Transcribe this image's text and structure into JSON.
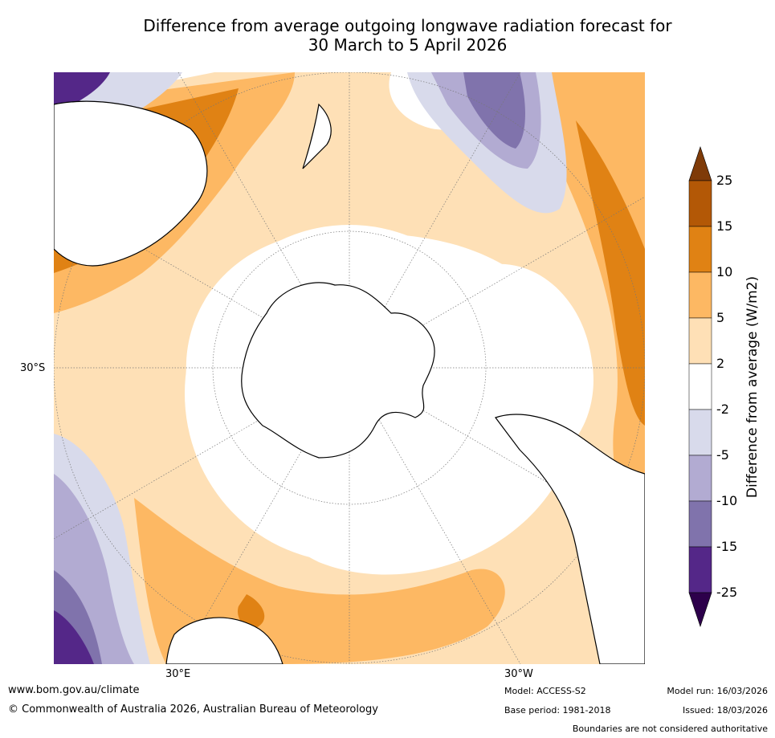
{
  "title": {
    "line1": "Difference from average outgoing longwave radiation forecast for",
    "line2": "30 March to 5 April 2026"
  },
  "axis_labels": {
    "lat_30s": "30°S",
    "lon_30e": "30°E",
    "lon_30w": "30°W"
  },
  "colorbar": {
    "title": "Difference from average (W/m2)",
    "ticks": [
      "25",
      "15",
      "10",
      "5",
      "2",
      "-2",
      "-5",
      "-10",
      "-15",
      "-25"
    ],
    "colors": {
      "over": "#7f3b08",
      "b15_25": "#b35806",
      "b10_15": "#e08214",
      "b5_10": "#fdb863",
      "b2_5": "#fee0b6",
      "neutral": "#ffffff",
      "m2_m5": "#d8daeb",
      "m5_m10": "#b2abd2",
      "m10_m15": "#8073ac",
      "m15_m25": "#542788",
      "under": "#2d004b"
    }
  },
  "footer": {
    "website": "www.bom.gov.au/climate",
    "copyright": "© Commonwealth of Australia 2026, Australian Bureau of Meteorology",
    "model": "Model: ACCESS-S2",
    "model_run": "Model run: 16/03/2026",
    "base_period": "Base period: 1981-2018",
    "issued": "Issued: 18/03/2026",
    "disclaimer": "Boundaries are not considered authoritative"
  }
}
